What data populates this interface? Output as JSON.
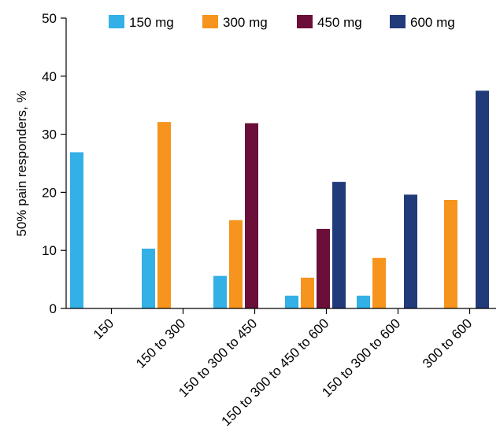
{
  "chart_data": {
    "type": "bar",
    "title": "",
    "xlabel": "",
    "ylabel": "50% pain responders, %",
    "ylim": [
      0,
      50
    ],
    "yticks": [
      0,
      10,
      20,
      30,
      40,
      50
    ],
    "grid": false,
    "legend_position": "top",
    "categories": [
      "150",
      "150 to 300",
      "150 to 300 to 450",
      "150 to 300 to 450 to 600",
      "150 to 300 to 600",
      "300 to 600"
    ],
    "series": [
      {
        "name": "150 mg",
        "color": "#33b0e6",
        "values": [
          26.9,
          10.3,
          5.6,
          2.2,
          2.2,
          null
        ]
      },
      {
        "name": "300 mg",
        "color": "#f7941d",
        "values": [
          null,
          32.1,
          15.2,
          5.3,
          8.7,
          18.7
        ]
      },
      {
        "name": "450 mg",
        "color": "#6b0f3a",
        "values": [
          null,
          null,
          31.9,
          13.7,
          null,
          null
        ]
      },
      {
        "name": "600 mg",
        "color": "#213a7a",
        "values": [
          null,
          null,
          null,
          21.8,
          19.6,
          37.5
        ]
      }
    ]
  }
}
